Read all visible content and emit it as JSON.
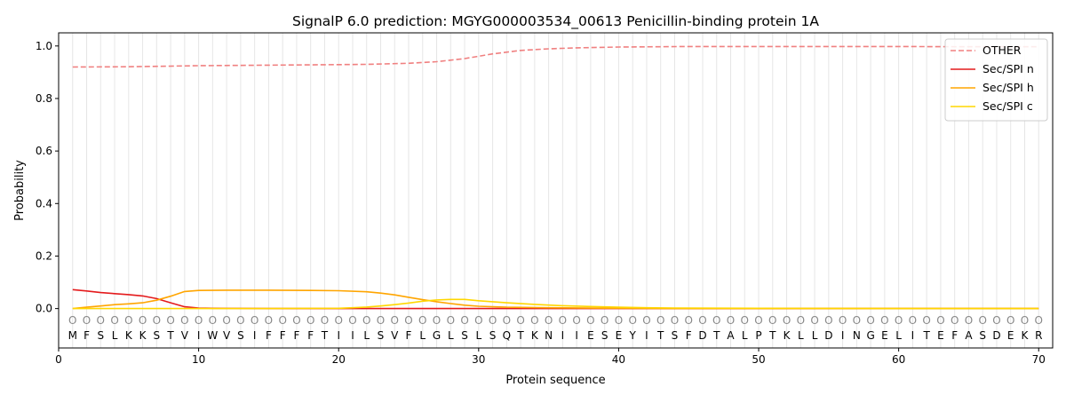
{
  "chart_data": {
    "type": "line",
    "title": "SignalP 6.0 prediction: MGYG000003534_00613 Penicillin-binding protein 1A",
    "xlabel": "Protein sequence",
    "ylabel": "Probability",
    "xlim": [
      0,
      71
    ],
    "ylim": [
      -0.15,
      1.05
    ],
    "x_ticks": [
      0,
      10,
      20,
      30,
      40,
      50,
      60,
      70
    ],
    "y_ticks": [
      "0.0",
      "0.2",
      "0.4",
      "0.6",
      "0.8",
      "1.0"
    ],
    "vertical_gridlines": true,
    "legend_position": "top-right",
    "sequence": "MFSLKKSTVIWVSIFFFFTIILSVFLGLSLSQTKNIIESEYITSFDTALPTKLLDINGELITEFASDEKR",
    "position_labels": "OOOOOOOOOOOOOOOOOOOOOOOOOOOOOOOOOOOOOOOOOOOOOOOOOOOOOOOOOOOOOOOOOOOOOO",
    "series": [
      {
        "name": "OTHER",
        "color": "#f08080",
        "dashed": true,
        "x": [
          1,
          5,
          10,
          15,
          20,
          22,
          25,
          27,
          29,
          31,
          33,
          35,
          37,
          40,
          45,
          50,
          55,
          60,
          65,
          70
        ],
        "values": [
          0.92,
          0.921,
          0.925,
          0.927,
          0.929,
          0.93,
          0.934,
          0.94,
          0.952,
          0.97,
          0.983,
          0.989,
          0.993,
          0.996,
          0.998,
          0.998,
          0.998,
          0.998,
          0.997,
          0.997
        ]
      },
      {
        "name": "Sec/SPI n",
        "color": "#e41a1c",
        "dashed": false,
        "x": [
          1,
          2,
          3,
          4,
          5,
          6,
          7,
          8,
          9,
          10,
          11,
          15,
          20,
          30,
          40,
          50,
          60,
          70
        ],
        "values": [
          0.072,
          0.067,
          0.061,
          0.057,
          0.053,
          0.048,
          0.038,
          0.022,
          0.007,
          0.002,
          0.001,
          0.0,
          0.0,
          0.0,
          0.0,
          0.0,
          0.0,
          0.0
        ]
      },
      {
        "name": "Sec/SPI h",
        "color": "#ffa500",
        "dashed": false,
        "x": [
          1,
          2,
          3,
          4,
          5,
          6,
          7,
          8,
          9,
          10,
          12,
          15,
          18,
          20,
          22,
          23,
          24,
          25,
          26,
          27,
          28,
          29,
          30,
          32,
          35,
          40,
          45,
          50,
          60,
          70
        ],
        "values": [
          0.0,
          0.005,
          0.01,
          0.015,
          0.018,
          0.022,
          0.032,
          0.047,
          0.065,
          0.069,
          0.07,
          0.07,
          0.069,
          0.068,
          0.064,
          0.059,
          0.052,
          0.043,
          0.034,
          0.026,
          0.019,
          0.013,
          0.009,
          0.005,
          0.003,
          0.001,
          0.0,
          0.0,
          0.0,
          0.0
        ]
      },
      {
        "name": "Sec/SPI c",
        "color": "#ffd700",
        "dashed": false,
        "x": [
          1,
          5,
          10,
          15,
          20,
          21,
          22,
          23,
          24,
          25,
          26,
          27,
          28,
          29,
          30,
          32,
          34,
          36,
          38,
          40,
          42,
          44,
          50,
          60,
          70
        ],
        "values": [
          0.0,
          0.0,
          0.0,
          0.0,
          0.001,
          0.003,
          0.006,
          0.01,
          0.015,
          0.021,
          0.028,
          0.033,
          0.035,
          0.035,
          0.03,
          0.022,
          0.016,
          0.011,
          0.008,
          0.005,
          0.003,
          0.002,
          0.001,
          0.0,
          0.0
        ]
      }
    ]
  }
}
